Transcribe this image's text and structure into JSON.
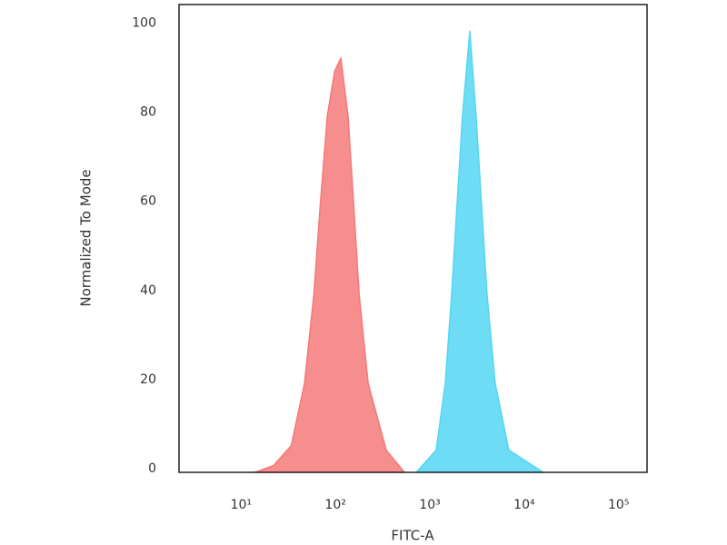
{
  "chart_data": {
    "type": "area",
    "xscale": "log",
    "grid": false,
    "xlabel": "FITC-A",
    "ylabel": "Normalized To Mode",
    "xlim": [
      2.2,
      200000
    ],
    "ylim": [
      0,
      105
    ],
    "xticks": [
      {
        "value": 10,
        "label": "10¹"
      },
      {
        "value": 100,
        "label": "10²"
      },
      {
        "value": 1000,
        "label": "10³"
      },
      {
        "value": 10000,
        "label": "10⁴"
      },
      {
        "value": 100000,
        "label": "10⁵"
      }
    ],
    "yticks": [
      0,
      20,
      40,
      60,
      80,
      100
    ],
    "series": [
      {
        "color": "#f47a7a",
        "x": [
          14,
          22,
          34,
          47,
          59,
          69,
          82,
          98,
          114,
          136,
          156,
          178,
          222,
          345,
          538
        ],
        "values": [
          0,
          1.5,
          6,
          20,
          40,
          60,
          80,
          90,
          93,
          80,
          60,
          40,
          20,
          5,
          0
        ]
      },
      {
        "color": "#55d6f2",
        "x": [
          718,
          1167,
          1456,
          1702,
          1941,
          2218,
          2649,
          3090,
          3532,
          4036,
          4925,
          6871,
          15920
        ],
        "values": [
          0,
          5,
          20,
          40,
          60,
          80,
          99,
          80,
          60,
          40,
          20,
          5,
          0
        ]
      }
    ]
  }
}
